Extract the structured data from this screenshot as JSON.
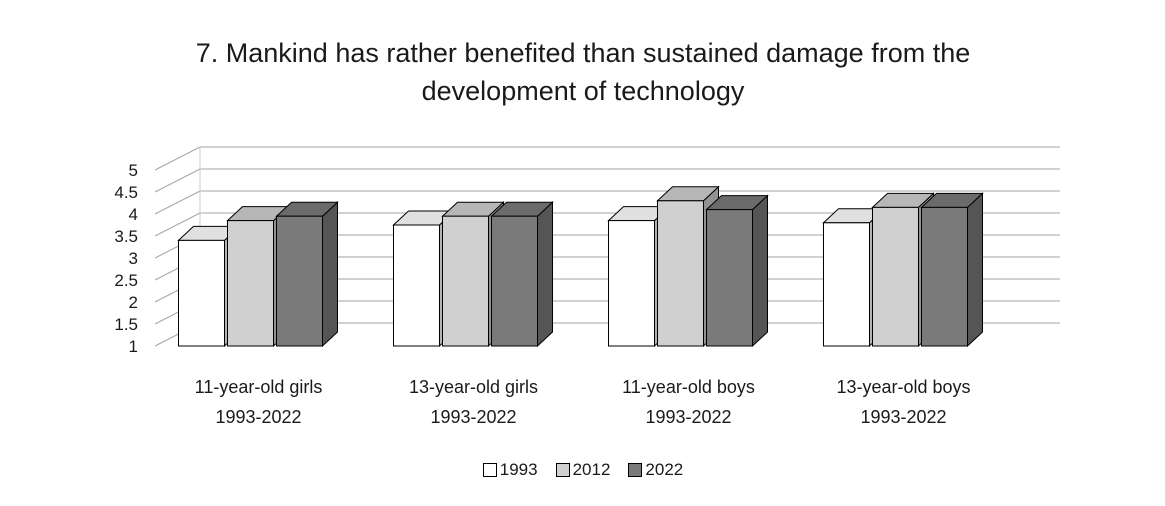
{
  "chart_data": {
    "type": "bar",
    "title": "7. Mankind has rather benefited than sustained damage from the development of technology",
    "title_lines": [
      "7. Mankind has rather benefited than sustained damage from the",
      "development of technology"
    ],
    "categories": [
      [
        "11-year-old girls",
        "1993-2022"
      ],
      [
        "13-year-old girls",
        "1993-2022"
      ],
      [
        "11-year-old boys",
        "1993-2022"
      ],
      [
        "13-year-old boys",
        "1993-2022"
      ]
    ],
    "series": [
      {
        "name": "1993",
        "color": "#ffffff",
        "values": [
          3.4,
          3.75,
          3.85,
          3.8
        ]
      },
      {
        "name": "2012",
        "color": "#d0d0d0",
        "values": [
          3.85,
          3.95,
          4.3,
          4.15
        ]
      },
      {
        "name": "2022",
        "color": "#7a7a7a",
        "values": [
          3.95,
          3.95,
          4.1,
          4.15
        ]
      }
    ],
    "yticks": [
      "1",
      "1.5",
      "2",
      "2.5",
      "3",
      "3.5",
      "4",
      "4.5",
      "5"
    ],
    "ylim": [
      1,
      5
    ],
    "grid": true,
    "legend_position": "bottom",
    "style": "3d-clustered-column"
  }
}
